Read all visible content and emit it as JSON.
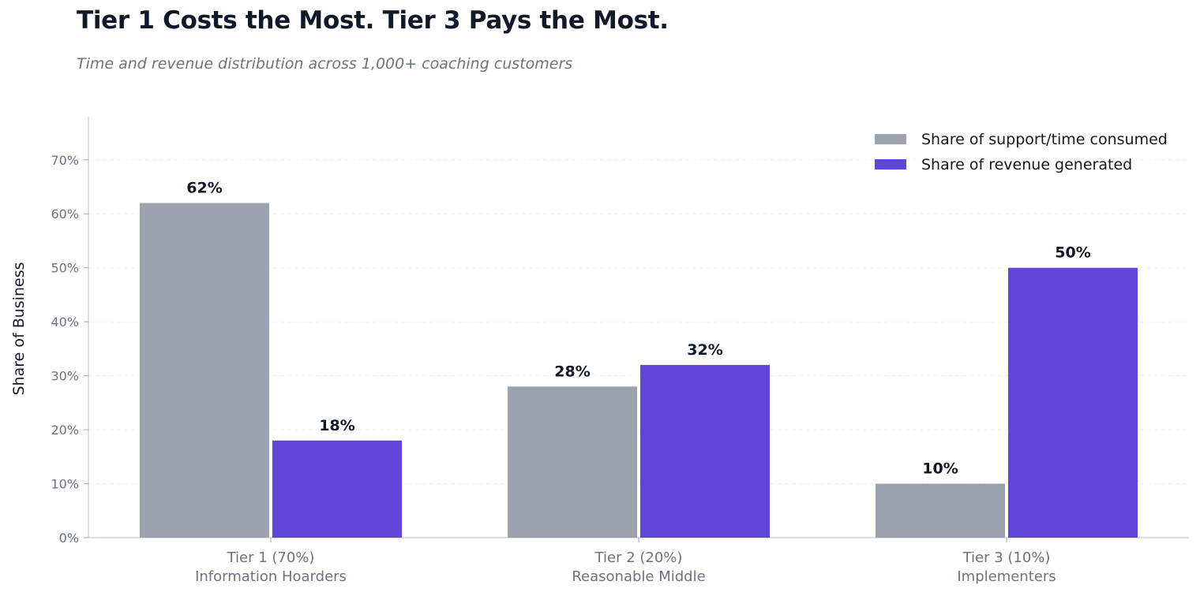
{
  "chart_data": {
    "type": "bar",
    "title": "Tier 1 Costs the Most. Tier 3 Pays the Most.",
    "subtitle": "Time and revenue distribution across 1,000+ coaching customers",
    "ylabel": "Share of Business",
    "xlabel": "",
    "ylim": [
      0,
      78
    ],
    "yticks": [
      0,
      10,
      20,
      30,
      40,
      50,
      60,
      70
    ],
    "ytick_labels": [
      "0%",
      "10%",
      "20%",
      "30%",
      "40%",
      "50%",
      "60%",
      "70%"
    ],
    "categories": [
      {
        "line1": "Tier 1 (70%)",
        "line2": "Information Hoarders"
      },
      {
        "line1": "Tier 2 (20%)",
        "line2": "Reasonable Middle"
      },
      {
        "line1": "Tier 3 (10%)",
        "line2": "Implementers"
      }
    ],
    "series": [
      {
        "name": "Share of support/time consumed",
        "color": "#9ca3af",
        "values": [
          62,
          28,
          10
        ],
        "labels": [
          "62%",
          "28%",
          "10%"
        ]
      },
      {
        "name": "Share of revenue generated",
        "color": "#6045d8",
        "values": [
          18,
          32,
          50
        ],
        "labels": [
          "18%",
          "32%",
          "50%"
        ]
      }
    ],
    "grid": "y-dashed",
    "legend_position": "top-right"
  }
}
